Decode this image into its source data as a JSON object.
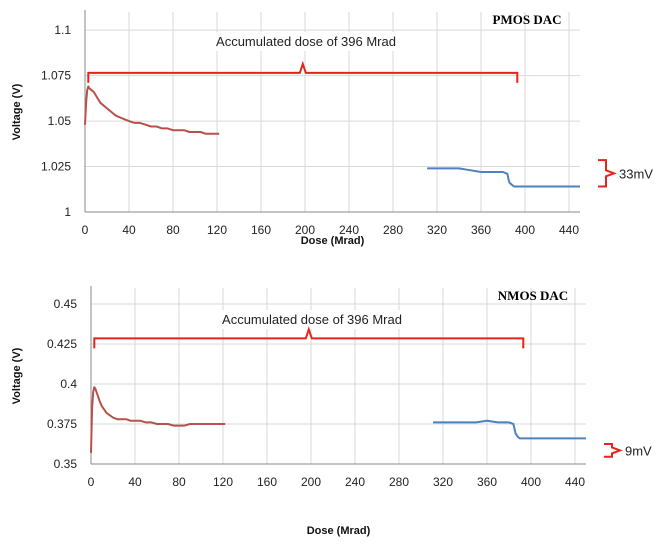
{
  "colors": {
    "series_before": "#b8504b",
    "series_after": "#4f81bd",
    "bracket": "#e8231a"
  },
  "chart_data": [
    {
      "type": "line",
      "title": "PMOS DAC",
      "xlabel": "Dose (Mrad)",
      "ylabel": "Voltage (V)",
      "xlim": [
        0,
        450
      ],
      "ylim": [
        1,
        1.11
      ],
      "xticks": [
        "0",
        "40",
        "80",
        "120",
        "160",
        "200",
        "240",
        "280",
        "320",
        "360",
        "400",
        "440"
      ],
      "yticks": [
        "1",
        "1.025",
        "1.05",
        "1.075",
        "1.1"
      ],
      "annotation": "Accumulated dose of 396 Mrad",
      "delta_label": "33mV",
      "delta_range": [
        1.014,
        1.0285
      ],
      "bracket_x": [
        3,
        393
      ],
      "bracket_y": 1.0765,
      "series": [
        {
          "x": [
            0,
            1,
            2,
            3,
            4,
            6,
            8,
            10,
            12,
            14,
            16,
            18,
            20,
            24,
            28,
            32,
            36,
            40,
            45,
            50,
            55,
            60,
            65,
            70,
            75,
            80,
            85,
            90,
            95,
            100,
            105,
            110,
            115,
            120,
            122
          ],
          "y": [
            1.048,
            1.06,
            1.067,
            1.069,
            1.068,
            1.067,
            1.066,
            1.064,
            1.062,
            1.06,
            1.059,
            1.058,
            1.057,
            1.055,
            1.053,
            1.052,
            1.051,
            1.05,
            1.049,
            1.049,
            1.048,
            1.047,
            1.047,
            1.046,
            1.046,
            1.045,
            1.045,
            1.045,
            1.044,
            1.044,
            1.044,
            1.043,
            1.043,
            1.043,
            1.043
          ]
        },
        {
          "x": [
            311,
            320,
            330,
            340,
            350,
            360,
            370,
            380,
            384,
            385,
            386,
            388,
            390,
            395,
            400,
            410,
            420,
            430,
            440,
            450
          ],
          "y": [
            1.024,
            1.024,
            1.024,
            1.024,
            1.023,
            1.022,
            1.022,
            1.022,
            1.021,
            1.018,
            1.016,
            1.015,
            1.014,
            1.014,
            1.014,
            1.014,
            1.014,
            1.014,
            1.014,
            1.014
          ]
        }
      ]
    },
    {
      "type": "line",
      "title": "NMOS DAC",
      "xlabel": "Dose (Mrad)",
      "ylabel": "Voltage (V)",
      "xlim": [
        0,
        450
      ],
      "ylim": [
        0.35,
        0.46
      ],
      "xticks": [
        "0",
        "40",
        "80",
        "120",
        "160",
        "200",
        "240",
        "280",
        "320",
        "360",
        "400",
        "440"
      ],
      "yticks": [
        "0.35",
        "0.375",
        "0.4",
        "0.425",
        "0.45"
      ],
      "annotation": "Accumulated dose of 396 Mrad",
      "delta_label": "9mV",
      "delta_range": [
        0.3545,
        0.3625
      ],
      "bracket_x": [
        3,
        393
      ],
      "bracket_y": 0.4285,
      "series": [
        {
          "x": [
            0,
            1,
            2,
            3,
            4,
            6,
            8,
            10,
            12,
            14,
            16,
            18,
            20,
            24,
            28,
            32,
            36,
            40,
            45,
            50,
            55,
            60,
            65,
            70,
            75,
            80,
            85,
            90,
            95,
            100,
            105,
            110,
            115,
            120,
            122
          ],
          "y": [
            0.357,
            0.385,
            0.395,
            0.398,
            0.397,
            0.393,
            0.389,
            0.386,
            0.384,
            0.382,
            0.381,
            0.38,
            0.379,
            0.378,
            0.378,
            0.378,
            0.377,
            0.377,
            0.377,
            0.376,
            0.376,
            0.375,
            0.375,
            0.375,
            0.374,
            0.374,
            0.374,
            0.375,
            0.375,
            0.375,
            0.375,
            0.375,
            0.375,
            0.375,
            0.375
          ]
        },
        {
          "x": [
            311,
            320,
            330,
            340,
            350,
            360,
            370,
            380,
            384,
            385,
            386,
            388,
            390,
            395,
            400,
            410,
            420,
            430,
            440,
            450
          ],
          "y": [
            0.376,
            0.376,
            0.376,
            0.376,
            0.376,
            0.377,
            0.376,
            0.376,
            0.375,
            0.372,
            0.369,
            0.367,
            0.366,
            0.366,
            0.366,
            0.366,
            0.366,
            0.366,
            0.366,
            0.366
          ]
        }
      ]
    }
  ]
}
